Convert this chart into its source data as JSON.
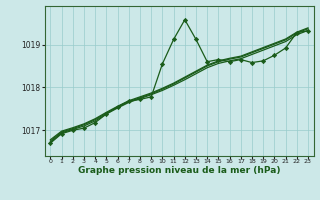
{
  "background_color": "#cce8e8",
  "plot_bg_color": "#cce8e8",
  "line_color": "#1a5c1a",
  "marker_color": "#1a5c1a",
  "grid_color": "#99cccc",
  "xlabel": "Graphe pression niveau de la mer (hPa)",
  "xlabel_fontsize": 6.5,
  "ylim": [
    1016.4,
    1019.9
  ],
  "xlim": [
    -0.5,
    23.5
  ],
  "xticks": [
    0,
    1,
    2,
    3,
    4,
    5,
    6,
    7,
    8,
    9,
    10,
    11,
    12,
    13,
    14,
    15,
    16,
    17,
    18,
    19,
    20,
    21,
    22,
    23
  ],
  "yticks": [
    1017,
    1018,
    1019
  ],
  "series1_x": [
    0,
    1,
    2,
    3,
    4,
    5,
    6,
    7,
    8,
    9,
    10,
    11,
    12,
    13,
    14,
    15,
    16,
    17,
    18,
    19,
    20,
    21,
    22,
    23
  ],
  "series1_y": [
    1016.7,
    1016.92,
    1017.0,
    1017.05,
    1017.18,
    1017.38,
    1017.55,
    1017.68,
    1017.72,
    1017.78,
    1018.55,
    1019.12,
    1019.58,
    1019.12,
    1018.6,
    1018.65,
    1018.6,
    1018.65,
    1018.58,
    1018.62,
    1018.75,
    1018.92,
    1019.28,
    1019.32
  ],
  "series2_y": [
    1016.72,
    1016.94,
    1017.02,
    1017.1,
    1017.22,
    1017.38,
    1017.52,
    1017.65,
    1017.74,
    1017.83,
    1017.93,
    1018.05,
    1018.18,
    1018.32,
    1018.46,
    1018.56,
    1018.62,
    1018.67,
    1018.77,
    1018.87,
    1018.97,
    1019.07,
    1019.23,
    1019.33
  ],
  "series3_y": [
    1016.75,
    1016.96,
    1017.04,
    1017.13,
    1017.25,
    1017.4,
    1017.54,
    1017.67,
    1017.76,
    1017.85,
    1017.96,
    1018.08,
    1018.22,
    1018.36,
    1018.5,
    1018.6,
    1018.66,
    1018.71,
    1018.81,
    1018.91,
    1019.01,
    1019.11,
    1019.27,
    1019.37
  ],
  "series4_y": [
    1016.78,
    1016.98,
    1017.06,
    1017.15,
    1017.27,
    1017.42,
    1017.56,
    1017.69,
    1017.78,
    1017.87,
    1017.98,
    1018.1,
    1018.24,
    1018.38,
    1018.52,
    1018.62,
    1018.68,
    1018.73,
    1018.83,
    1018.93,
    1019.03,
    1019.13,
    1019.29,
    1019.39
  ]
}
